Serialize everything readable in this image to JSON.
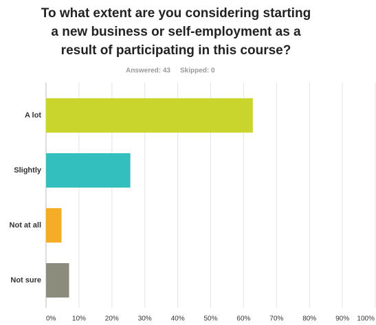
{
  "chart_data": {
    "type": "hbar",
    "title": [
      "To what extent are you considering starting",
      "a new business or self-employment as a",
      "result of participating in this course?"
    ],
    "answered": "Answered: 43",
    "skipped": "Skipped: 0",
    "categories": [
      "A lot",
      "Slightly",
      "Not at all",
      "Not sure"
    ],
    "values": [
      62.8,
      25.6,
      4.7,
      7.0
    ],
    "colors": [
      "#c9d42c",
      "#34bfbf",
      "#f5ad28",
      "#8c8c7c"
    ],
    "xlim": [
      0,
      100
    ],
    "xticks": [
      {
        "value": 0,
        "label": "0%"
      },
      {
        "value": 10,
        "label": "10%"
      },
      {
        "value": 20,
        "label": "20%"
      },
      {
        "value": 30,
        "label": "30%"
      },
      {
        "value": 40,
        "label": "40%"
      },
      {
        "value": 50,
        "label": "50%"
      },
      {
        "value": 60,
        "label": "60%"
      },
      {
        "value": 70,
        "label": "70%"
      },
      {
        "value": 80,
        "label": "80%"
      },
      {
        "value": 90,
        "label": "90%"
      },
      {
        "value": 100,
        "label": "100%"
      }
    ],
    "grid": true
  }
}
